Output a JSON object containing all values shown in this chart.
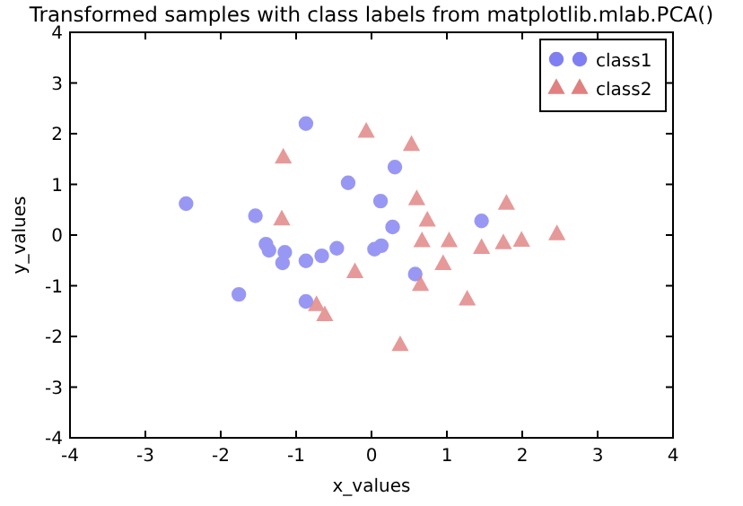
{
  "chart_data": {
    "type": "scatter",
    "title": "Transformed samples with class labels from matplotlib.mlab.PCA()",
    "xlabel": "x_values",
    "ylabel": "y_values",
    "xlim": [
      -4,
      4
    ],
    "ylim": [
      -4,
      4
    ],
    "xticks": [
      -4,
      -3,
      -2,
      -1,
      0,
      1,
      2,
      3,
      4
    ],
    "yticks": [
      -4,
      -3,
      -2,
      -1,
      0,
      1,
      2,
      3,
      4
    ],
    "grid": false,
    "legend": "top right",
    "series": [
      {
        "name": "class1",
        "color": "#7f7ff2",
        "marker": "circle",
        "x": [
          -2.46,
          -0.87,
          -1.54,
          -1.4,
          -1.36,
          -1.15,
          -1.18,
          -0.87,
          -0.66,
          -0.46,
          -0.31,
          -1.76,
          -0.87,
          0.12,
          0.31,
          0.28,
          0.04,
          0.13,
          0.58,
          1.46
        ],
        "values": [
          0.62,
          2.2,
          0.38,
          -0.18,
          -0.3,
          -0.34,
          -0.55,
          -0.51,
          -0.41,
          -0.26,
          1.03,
          -1.17,
          -1.31,
          0.67,
          1.34,
          0.16,
          -0.28,
          -0.21,
          -0.77,
          0.28
        ]
      },
      {
        "name": "class2",
        "color": "#e08080",
        "marker": "triangle",
        "x": [
          -1.17,
          -1.19,
          -0.07,
          0.53,
          0.6,
          0.74,
          0.67,
          1.03,
          -0.22,
          0.95,
          1.46,
          1.75,
          1.99,
          1.79,
          2.46,
          0.65,
          1.27,
          -0.73,
          -0.62,
          0.38
        ],
        "values": [
          1.53,
          0.31,
          2.04,
          1.78,
          0.71,
          0.29,
          -0.12,
          -0.12,
          -0.73,
          -0.57,
          -0.25,
          -0.16,
          -0.11,
          0.62,
          0.02,
          -0.98,
          -1.27,
          -1.38,
          -1.58,
          -2.17
        ]
      }
    ]
  }
}
